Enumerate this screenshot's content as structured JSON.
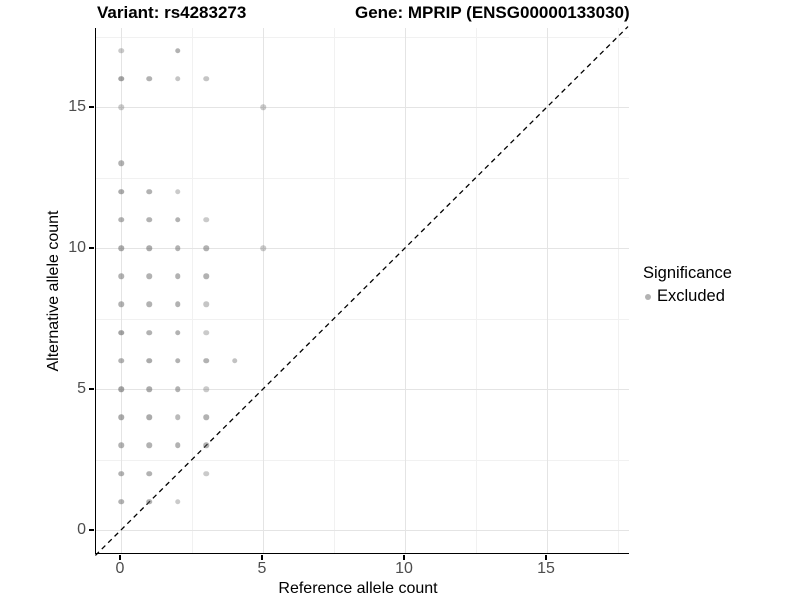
{
  "chart_data": {
    "type": "scatter",
    "title_left": "Variant: rs4283273",
    "title_right": "Gene: MPRIP (ENSG00000133030)",
    "xlabel": "Reference allele count",
    "ylabel": "Alternative allele count",
    "x_ticks": [
      0,
      5,
      10,
      15
    ],
    "y_ticks": [
      0,
      5,
      10,
      15
    ],
    "x_minor_gridlines": [
      2.5,
      7.5,
      12.5,
      17.5
    ],
    "y_minor_gridlines": [
      2.5,
      7.5,
      12.5,
      17.5
    ],
    "xlim": [
      -0.9,
      17.9
    ],
    "ylim": [
      -0.9,
      17.8
    ],
    "grid": "on",
    "identity_line": {
      "equation": "y = x",
      "style": "dashed",
      "color": "#000000"
    },
    "legend": {
      "position": "right",
      "title": "Significance",
      "items": [
        {
          "label": "Excluded",
          "color": "#b3b3b3"
        }
      ]
    },
    "series": [
      {
        "name": "Excluded",
        "color": "#666666",
        "points_format": "[reference_allele_count, alternative_allele_count, opacity]",
        "points": [
          [
            0,
            17,
            0.35
          ],
          [
            2,
            17,
            0.5
          ],
          [
            0,
            16,
            0.6
          ],
          [
            1,
            16,
            0.5
          ],
          [
            2,
            16,
            0.38
          ],
          [
            3,
            16,
            0.38
          ],
          [
            0,
            15,
            0.35
          ],
          [
            5,
            15,
            0.35
          ],
          [
            0,
            13,
            0.5
          ],
          [
            0,
            12,
            0.55
          ],
          [
            1,
            12,
            0.5
          ],
          [
            2,
            12,
            0.35
          ],
          [
            0,
            11,
            0.5
          ],
          [
            1,
            11,
            0.5
          ],
          [
            2,
            11,
            0.5
          ],
          [
            3,
            11,
            0.35
          ],
          [
            0,
            10,
            0.55
          ],
          [
            1,
            10,
            0.55
          ],
          [
            2,
            10,
            0.5
          ],
          [
            3,
            10,
            0.5
          ],
          [
            5,
            10,
            0.35
          ],
          [
            0,
            9,
            0.5
          ],
          [
            1,
            9,
            0.5
          ],
          [
            2,
            9,
            0.5
          ],
          [
            3,
            9,
            0.5
          ],
          [
            0,
            8,
            0.5
          ],
          [
            1,
            8,
            0.5
          ],
          [
            2,
            8,
            0.5
          ],
          [
            3,
            8,
            0.38
          ],
          [
            0,
            7,
            0.6
          ],
          [
            1,
            7,
            0.5
          ],
          [
            2,
            7,
            0.5
          ],
          [
            3,
            7,
            0.35
          ],
          [
            0,
            6,
            0.5
          ],
          [
            1,
            6,
            0.55
          ],
          [
            2,
            6,
            0.5
          ],
          [
            3,
            6,
            0.5
          ],
          [
            4,
            6,
            0.4
          ],
          [
            0,
            5,
            0.6
          ],
          [
            1,
            5,
            0.55
          ],
          [
            2,
            5,
            0.5
          ],
          [
            3,
            5,
            0.35
          ],
          [
            0,
            4,
            0.55
          ],
          [
            1,
            4,
            0.55
          ],
          [
            2,
            4,
            0.45
          ],
          [
            3,
            4,
            0.5
          ],
          [
            0,
            3,
            0.5
          ],
          [
            1,
            3,
            0.5
          ],
          [
            2,
            3,
            0.5
          ],
          [
            3,
            3,
            0.5
          ],
          [
            0,
            2,
            0.5
          ],
          [
            1,
            2,
            0.5
          ],
          [
            3,
            2,
            0.35
          ],
          [
            0,
            1,
            0.5
          ],
          [
            1,
            1,
            0.5
          ],
          [
            2,
            1,
            0.35
          ]
        ]
      }
    ]
  },
  "colors": {
    "background": "#ffffff",
    "point": "#666666",
    "legend_point": "#b3b3b3",
    "grid_major": "#e4e4e4",
    "grid_minor": "#f1f1f1",
    "axis_line": "#000000",
    "tick_label": "#4d4d4d",
    "identity_line": "#000000"
  }
}
